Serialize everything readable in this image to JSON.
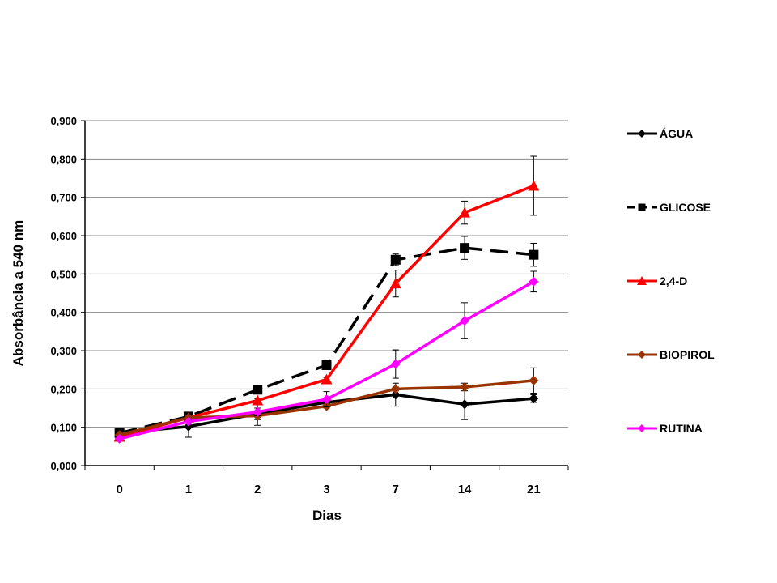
{
  "chart_data": {
    "type": "line",
    "title": "",
    "xlabel": "Dias",
    "ylabel": "Absorbância a 540 nm",
    "categories": [
      "0",
      "1",
      "2",
      "3",
      "7",
      "14",
      "21"
    ],
    "ylim": [
      0,
      0.9
    ],
    "yticks": [
      "0,000",
      "0,100",
      "0,200",
      "0,300",
      "0,400",
      "0,500",
      "0,600",
      "0,700",
      "0,800",
      "0,900"
    ],
    "grid": true,
    "legend_position": "right",
    "series": [
      {
        "name": "ÁGUA",
        "color": "#000000",
        "marker": "diamond",
        "dashed": false,
        "values": [
          0.085,
          0.102,
          0.135,
          0.165,
          0.185,
          0.16,
          0.175
        ],
        "errors": [
          0.005,
          0.028,
          0.03,
          0.01,
          0.03,
          0.04,
          0.01
        ]
      },
      {
        "name": "GLICOSE",
        "color": "#000000",
        "marker": "square",
        "dashed": true,
        "values": [
          0.085,
          0.128,
          0.198,
          0.262,
          0.537,
          0.568,
          0.55
        ],
        "errors": [
          0.005,
          0.005,
          0.005,
          0.005,
          0.015,
          0.03,
          0.03
        ]
      },
      {
        "name": "2,4-D",
        "color": "#ff0000",
        "marker": "triangle",
        "dashed": false,
        "values": [
          0.075,
          0.125,
          0.17,
          0.225,
          0.475,
          0.66,
          0.73
        ],
        "errors": [
          0.005,
          0.005,
          0.005,
          0.005,
          0.035,
          0.03,
          0.077
        ]
      },
      {
        "name": "BIOPIROL",
        "color": "#993300",
        "marker": "diamond",
        "dashed": false,
        "values": [
          0.08,
          0.125,
          0.13,
          0.155,
          0.2,
          0.205,
          0.222
        ],
        "errors": [
          0.005,
          0.005,
          0.01,
          0.005,
          0.005,
          0.01,
          0.033
        ]
      },
      {
        "name": "RUTINA",
        "color": "#ff00ff",
        "marker": "diamond",
        "dashed": false,
        "values": [
          0.07,
          0.115,
          0.14,
          0.173,
          0.265,
          0.378,
          0.48
        ],
        "errors": [
          0.005,
          0.005,
          0.01,
          0.02,
          0.037,
          0.047,
          0.027
        ]
      }
    ]
  }
}
